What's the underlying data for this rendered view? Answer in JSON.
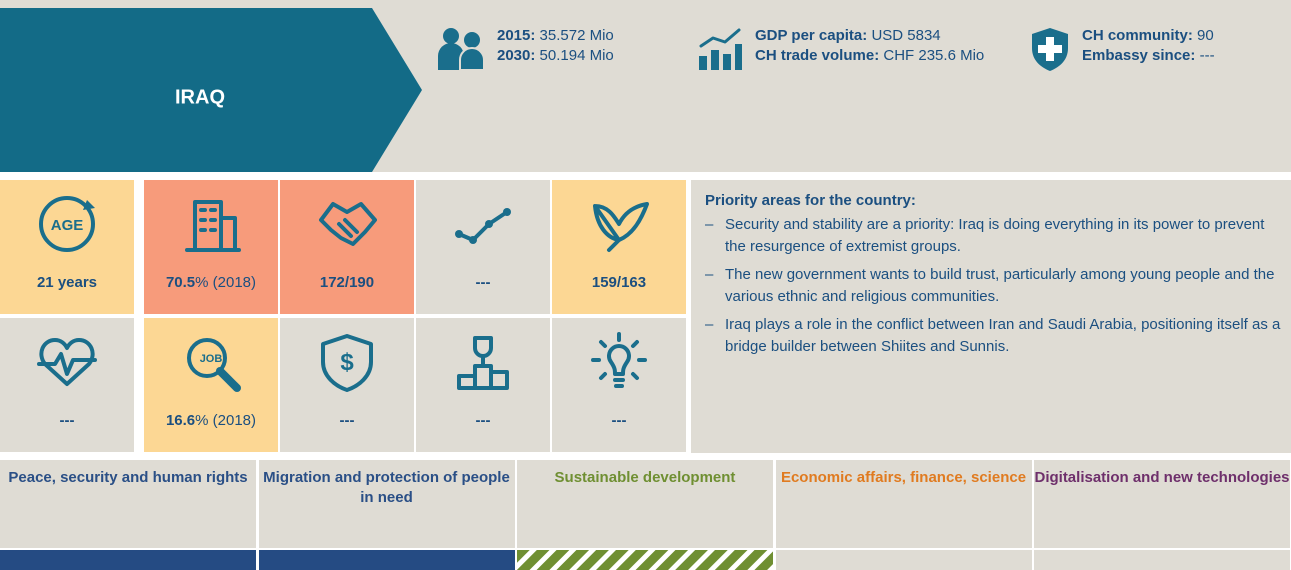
{
  "header": {
    "country": "IRAQ"
  },
  "stats": [
    {
      "lines": [
        {
          "label": "2015:",
          "value": "35.572 Mio"
        },
        {
          "label": "2030:",
          "value": "50.194 Mio"
        }
      ]
    },
    {
      "lines": [
        {
          "label": "GDP per capita:",
          "value": "USD 5834"
        },
        {
          "label": "CH trade volume:",
          "value": "CHF 235.6 Mio"
        }
      ]
    },
    {
      "lines": [
        {
          "label": "CH community:",
          "value": "90"
        },
        {
          "label": "Embassy since:",
          "value": "---"
        }
      ]
    }
  ],
  "indicators": [
    {
      "icon_text": "AGE",
      "bold": "21 years",
      "rest": ""
    },
    {
      "bold": "70.5",
      "rest": "% (2018)"
    },
    {
      "bold": "172/190",
      "rest": ""
    },
    {
      "bold": "---",
      "rest": ""
    },
    {
      "bold": "159/163",
      "rest": ""
    },
    {
      "bold": "---",
      "rest": ""
    },
    {
      "icon_text": "JOB",
      "bold": "16.6",
      "rest": "% (2018)"
    },
    {
      "bold": "---",
      "rest": ""
    },
    {
      "bold": "---",
      "rest": ""
    },
    {
      "bold": "---",
      "rest": ""
    }
  ],
  "priorities": {
    "title": "Priority areas for the country:",
    "items": [
      "Security and stability are a priority: Iraq is doing everything in its power to prevent the resurgence of extremist groups.",
      "The new government wants to build trust, particularly among young people and the various ethnic and religious communities.",
      "Iraq plays a role in the conflict between Iran and Saudi Arabia, positioning itself as a bridge builder between Shiites and Sunnis."
    ]
  },
  "topics": [
    "Peace, security and human rights",
    "Migration and protection of people in need",
    "Sustainable development",
    "Economic affairs, finance, science",
    "Digitalisation and new technologies"
  ]
}
